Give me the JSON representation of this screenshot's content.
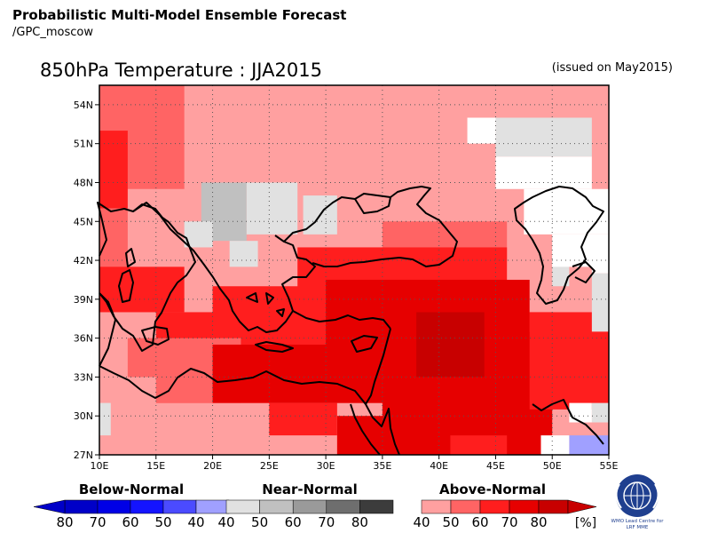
{
  "header": {
    "title_line1": "Probabilistic Multi-Model Ensemble Forecast",
    "title_line2": "/GPC_moscow",
    "map_title": "850hPa Temperature : JJA2015",
    "issued": "(issued on May2015)"
  },
  "map": {
    "lon_range": [
      10,
      55
    ],
    "lat_range": [
      27,
      55.5
    ],
    "lat_labels": [
      "54N",
      "51N",
      "48N",
      "45N",
      "42N",
      "39N",
      "36N",
      "33N",
      "30N",
      "27N"
    ],
    "lon_labels": [
      "10E",
      "15E",
      "20E",
      "25E",
      "30E",
      "35E",
      "40E",
      "45E",
      "50E",
      "55E"
    ],
    "regions": [
      {
        "lon": [
          10,
          55
        ],
        "lat": [
          27,
          55.5
        ],
        "cat": "above",
        "p": 40
      },
      {
        "lon": [
          10,
          17.5
        ],
        "lat": [
          47.5,
          55.5
        ],
        "cat": "above",
        "p": 50
      },
      {
        "lon": [
          10,
          12.5
        ],
        "lat": [
          46,
          52
        ],
        "cat": "above",
        "p": 60
      },
      {
        "lon": [
          10,
          12.5
        ],
        "lat": [
          41,
          46
        ],
        "cat": "above",
        "p": 50
      },
      {
        "lon": [
          15,
          40
        ],
        "lat": [
          43,
          45
        ],
        "cat": "above",
        "p": 40
      },
      {
        "lon": [
          35,
          46
        ],
        "lat": [
          42,
          45
        ],
        "cat": "above",
        "p": 50
      },
      {
        "lon": [
          27.5,
          46
        ],
        "lat": [
          39.5,
          43
        ],
        "cat": "above",
        "p": 60
      },
      {
        "lon": [
          10,
          17.5
        ],
        "lat": [
          38,
          41.5
        ],
        "cat": "above",
        "p": 60
      },
      {
        "lon": [
          20,
          46
        ],
        "lat": [
          34,
          40
        ],
        "cat": "above",
        "p": 60
      },
      {
        "lon": [
          15,
          50
        ],
        "lat": [
          31,
          38
        ],
        "cat": "above",
        "p": 60
      },
      {
        "lon": [
          12.5,
          22.5
        ],
        "lat": [
          31,
          36
        ],
        "cat": "above",
        "p": 50
      },
      {
        "lon": [
          30,
          48
        ],
        "lat": [
          33.5,
          40.5
        ],
        "cat": "above",
        "p": 70
      },
      {
        "lon": [
          20,
          35
        ],
        "lat": [
          31,
          35.5
        ],
        "cat": "above",
        "p": 70
      },
      {
        "lon": [
          35,
          50
        ],
        "lat": [
          27,
          36.5
        ],
        "cat": "above",
        "p": 70
      },
      {
        "lon": [
          31,
          45
        ],
        "lat": [
          27,
          30
        ],
        "cat": "above",
        "p": 70
      },
      {
        "lon": [
          38,
          44
        ],
        "lat": [
          33,
          38
        ],
        "cat": "above",
        "p": 80
      },
      {
        "lon": [
          48,
          55
        ],
        "lat": [
          30.5,
          38
        ],
        "cat": "above",
        "p": 60
      },
      {
        "lon": [
          41,
          46
        ],
        "lat": [
          27,
          28.5
        ],
        "cat": "above",
        "p": 60
      },
      {
        "lon": [
          25,
          31
        ],
        "lat": [
          28.5,
          31
        ],
        "cat": "above",
        "p": 60
      },
      {
        "lon": [
          10,
          15
        ],
        "lat": [
          29.5,
          33
        ],
        "cat": "above",
        "p": 40
      },
      {
        "lon": [
          10,
          11
        ],
        "lat": [
          28.5,
          31
        ],
        "cat": "near",
        "p": 40
      },
      {
        "lon": [
          19,
          23
        ],
        "lat": [
          43.5,
          48
        ],
        "cat": "near",
        "p": 50
      },
      {
        "lon": [
          23,
          27.5
        ],
        "lat": [
          44,
          48
        ],
        "cat": "near",
        "p": 40
      },
      {
        "lon": [
          28,
          31
        ],
        "lat": [
          44,
          47
        ],
        "cat": "near",
        "p": 40
      },
      {
        "lon": [
          17.5,
          20
        ],
        "lat": [
          43,
          45
        ],
        "cat": "near",
        "p": 40
      },
      {
        "lon": [
          21.5,
          24
        ],
        "lat": [
          41.5,
          43.5
        ],
        "cat": "near",
        "p": 40
      },
      {
        "lon": [
          45,
          53.5
        ],
        "lat": [
          50,
          53
        ],
        "cat": "near",
        "p": 40
      },
      {
        "lon": [
          50,
          51.5
        ],
        "lat": [
          40,
          43
        ],
        "cat": "near",
        "p": 40
      },
      {
        "lon": [
          53.5,
          55
        ],
        "lat": [
          36.5,
          41
        ],
        "cat": "near",
        "p": 40
      },
      {
        "lon": [
          53.5,
          55
        ],
        "lat": [
          29.5,
          31
        ],
        "cat": "near",
        "p": 40
      },
      {
        "lon": [
          51.5,
          55
        ],
        "lat": [
          27,
          28.5
        ],
        "cat": "below",
        "p": 40
      }
    ],
    "white_regions": [
      {
        "lon": [
          42.5,
          45
        ],
        "lat": [
          51,
          53
        ]
      },
      {
        "lon": [
          45,
          53.5
        ],
        "lat": [
          47.5,
          50
        ]
      },
      {
        "lon": [
          47.5,
          55
        ],
        "lat": [
          44,
          47.5
        ]
      },
      {
        "lon": [
          50,
          55
        ],
        "lat": [
          41.5,
          44
        ]
      },
      {
        "lon": [
          53.5,
          55
        ],
        "lat": [
          41,
          42
        ]
      },
      {
        "lon": [
          51.5,
          53.5
        ],
        "lat": [
          29.5,
          31
        ]
      },
      {
        "lon": [
          49,
          51.5
        ],
        "lat": [
          27,
          28.5
        ]
      }
    ]
  },
  "legend": {
    "below": {
      "title": "Below-Normal",
      "labels": [
        "80",
        "70",
        "60",
        "50",
        "40"
      ],
      "colors": [
        "#0000c8",
        "#0000e6",
        "#1414ff",
        "#4b4bff",
        "#a0a0ff"
      ]
    },
    "near": {
      "title": "Near-Normal",
      "labels": [
        "40",
        "50",
        "60",
        "70",
        "80"
      ],
      "colors": [
        "#e1e1e1",
        "#c0c0c0",
        "#9a9a9a",
        "#6e6e6e",
        "#3c3c3c"
      ]
    },
    "above": {
      "title": "Above-Normal",
      "labels": [
        "40",
        "50",
        "60",
        "70",
        "80"
      ],
      "colors": [
        "#ffa0a0",
        "#ff6464",
        "#ff1e1e",
        "#e60000",
        "#c80000"
      ],
      "unit": "[%]"
    }
  },
  "logo_text": [
    "WMO Lead Centre for",
    "LRF MME"
  ],
  "colors": {
    "coast": "#000000",
    "grid": "#555555"
  }
}
